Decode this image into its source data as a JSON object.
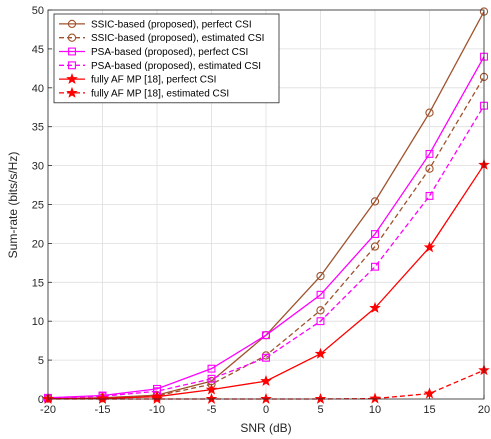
{
  "chart_data": {
    "type": "line",
    "xlabel": "SNR (dB)",
    "ylabel": "Sum-rate (bits/s/Hz)",
    "xlim": [
      -20,
      20
    ],
    "ylim": [
      0,
      50
    ],
    "xticks": [
      -20,
      -15,
      -10,
      -5,
      0,
      5,
      10,
      15,
      20
    ],
    "yticks": [
      0,
      5,
      10,
      15,
      20,
      25,
      30,
      35,
      40,
      45,
      50
    ],
    "grid": true,
    "legend_position": "top-left",
    "x": [
      -20,
      -15,
      -10,
      -5,
      0,
      5,
      10,
      15,
      20
    ],
    "series": [
      {
        "name": "SSIC-based (proposed), perfect CSI",
        "color": "#A0522D",
        "linestyle": "solid",
        "marker": "circle",
        "values": [
          0.05,
          0.15,
          0.5,
          2.3,
          8.2,
          15.8,
          25.4,
          36.8,
          49.8
        ]
      },
      {
        "name": "SSIC-based (proposed), estimated CSI",
        "color": "#A0522D",
        "linestyle": "dashed",
        "marker": "circle",
        "values": [
          0.05,
          0.1,
          0.4,
          1.9,
          5.6,
          11.4,
          19.6,
          29.6,
          41.4
        ]
      },
      {
        "name": "PSA-based (proposed), perfect CSI",
        "color": "#FF00FF",
        "linestyle": "solid",
        "marker": "square",
        "values": [
          0.15,
          0.45,
          1.3,
          3.9,
          8.2,
          13.4,
          21.2,
          31.5,
          44.0
        ]
      },
      {
        "name": "PSA-based (proposed), estimated CSI",
        "color": "#FF00FF",
        "linestyle": "dashed",
        "marker": "square",
        "values": [
          0.1,
          0.35,
          1.0,
          2.6,
          5.3,
          10.0,
          17.0,
          26.1,
          37.7
        ]
      },
      {
        "name": "fully AF MP [18], perfect CSI",
        "color": "#FF0000",
        "linestyle": "solid",
        "marker": "star",
        "values": [
          0.03,
          0.08,
          0.3,
          1.2,
          2.3,
          5.8,
          11.7,
          19.5,
          30.1
        ]
      },
      {
        "name": "fully AF MP [18], estimated CSI",
        "color": "#FF0000",
        "linestyle": "dashed",
        "marker": "star",
        "values": [
          0.0,
          0.0,
          0.0,
          0.0,
          0.0,
          0.0,
          0.05,
          0.7,
          3.7
        ]
      }
    ]
  }
}
